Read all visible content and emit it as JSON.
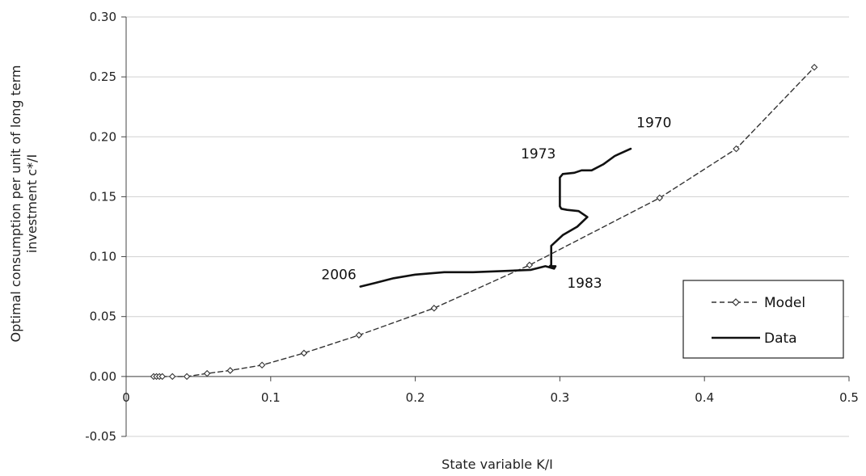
{
  "chart_data": {
    "type": "line",
    "title": "",
    "xlabel": "State variable K/I",
    "ylabel_lines": [
      "Optimal consumption per unit of long term",
      "investment c*/I"
    ],
    "xlim": [
      0,
      0.5
    ],
    "ylim": [
      -0.05,
      0.3
    ],
    "xticks": [
      0,
      0.1,
      0.2,
      0.3,
      0.4,
      0.5
    ],
    "xtick_labels": [
      "0",
      "0.1",
      "0.2",
      "0.3",
      "0.4",
      "0.5"
    ],
    "yticks": [
      -0.05,
      0,
      0.05,
      0.1,
      0.15,
      0.2,
      0.25,
      0.3
    ],
    "ytick_labels": [
      "-0.05",
      "0.00",
      "0.05",
      "0.10",
      "0.15",
      "0.20",
      "0.25",
      "0.30"
    ],
    "grid": "horizontal",
    "legend": {
      "placement": "bottom-right",
      "entries": [
        {
          "name": "Model",
          "style": "dashed-diamond"
        },
        {
          "name": "Data",
          "style": "solid"
        }
      ]
    },
    "series": [
      {
        "name": "Model",
        "style": "dashed",
        "marker": "diamond",
        "color": "#333333",
        "x": [
          0.019,
          0.021,
          0.023,
          0.025,
          0.032,
          0.042,
          0.056,
          0.072,
          0.094,
          0.123,
          0.161,
          0.213,
          0.279,
          0.369,
          0.422,
          0.476
        ],
        "y": [
          0.0,
          0.0,
          0.0,
          0.0,
          0.0,
          0.0,
          0.0025,
          0.005,
          0.0095,
          0.0195,
          0.0345,
          0.057,
          0.093,
          0.149,
          0.19,
          0.258
        ]
      },
      {
        "name": "Data",
        "style": "solid",
        "color": "#111111",
        "x": [
          0.349,
          0.338,
          0.33,
          0.322,
          0.315,
          0.31,
          0.302,
          0.3,
          0.3,
          0.301,
          0.305,
          0.313,
          0.319,
          0.312,
          0.302,
          0.294,
          0.294,
          0.293,
          0.297,
          0.296,
          0.29,
          0.28,
          0.26,
          0.24,
          0.22,
          0.2,
          0.185,
          0.172,
          0.162
        ],
        "y": [
          0.19,
          0.184,
          0.177,
          0.172,
          0.172,
          0.17,
          0.169,
          0.166,
          0.142,
          0.14,
          0.139,
          0.138,
          0.133,
          0.125,
          0.118,
          0.109,
          0.093,
          0.092,
          0.092,
          0.09,
          0.092,
          0.089,
          0.088,
          0.087,
          0.087,
          0.085,
          0.082,
          0.078,
          0.075
        ]
      }
    ],
    "annotations": [
      {
        "text": "1970",
        "x": 0.353,
        "y": 0.208
      },
      {
        "text": "1973",
        "x": 0.273,
        "y": 0.182
      },
      {
        "text": "1983",
        "x": 0.305,
        "y": 0.074
      },
      {
        "text": "2006",
        "x": 0.135,
        "y": 0.081
      }
    ]
  }
}
